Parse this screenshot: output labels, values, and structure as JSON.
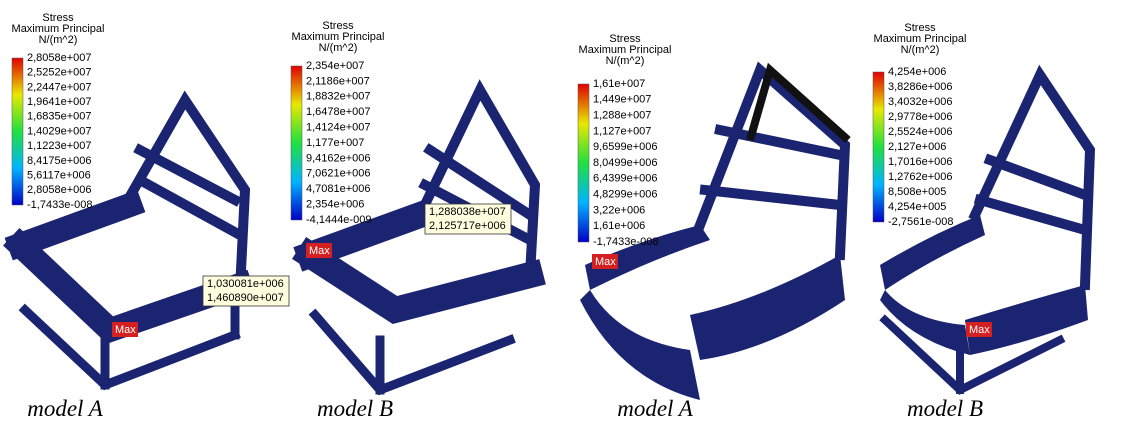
{
  "panels": [
    {
      "legend_title": [
        "Stress",
        "Maximum Principal",
        "N/(m^2)"
      ],
      "legend_values": [
        "2,8058e+007",
        "2,5252e+007",
        "2,2447e+007",
        "1,9641e+007",
        "1,6835e+007",
        "1,4029e+007",
        "1,1223e+007",
        "8,4175e+006",
        "5,6117e+006",
        "2,8058e+006",
        "-1,7433e-008"
      ],
      "probe": [
        "1,030081e+006",
        "1,460890e+007"
      ],
      "max_label": "Max",
      "caption": "model A"
    },
    {
      "legend_title": [
        "Stress",
        "Maximum Principal",
        "N/(m^2)"
      ],
      "legend_values": [
        "2,354e+007",
        "2,1186e+007",
        "1,8832e+007",
        "1,6478e+007",
        "1,4124e+007",
        "1,177e+007",
        "9,4162e+006",
        "7,0621e+006",
        "4,7081e+006",
        "2,354e+006",
        "-4,1444e-009"
      ],
      "probe": [
        "1,288038e+007",
        "2,125717e+006"
      ],
      "max_label": "Max",
      "caption": "model B"
    },
    {
      "legend_title": [
        "Stress",
        "Maximum Principal",
        "N/(m^2)"
      ],
      "legend_values": [
        "1,61e+007",
        "1,449e+007",
        "1,288e+007",
        "1,127e+007",
        "9,6599e+006",
        "8,0499e+006",
        "6,4399e+006",
        "4,8299e+006",
        "3,22e+006",
        "1,61e+006",
        "-1,7433e-008"
      ],
      "max_label": "Max",
      "caption": "model A"
    },
    {
      "legend_title": [
        "Stress",
        "Maximum Principal",
        "N/(m^2)"
      ],
      "legend_values": [
        "4,254e+006",
        "3,8286e+006",
        "3,4032e+006",
        "2,9778e+006",
        "2,5524e+006",
        "2,127e+006",
        "1,7016e+006",
        "1,2762e+006",
        "8,508e+005",
        "4,254e+005",
        "-2,7561e-008"
      ],
      "max_label": "Max",
      "caption": "model B"
    }
  ]
}
